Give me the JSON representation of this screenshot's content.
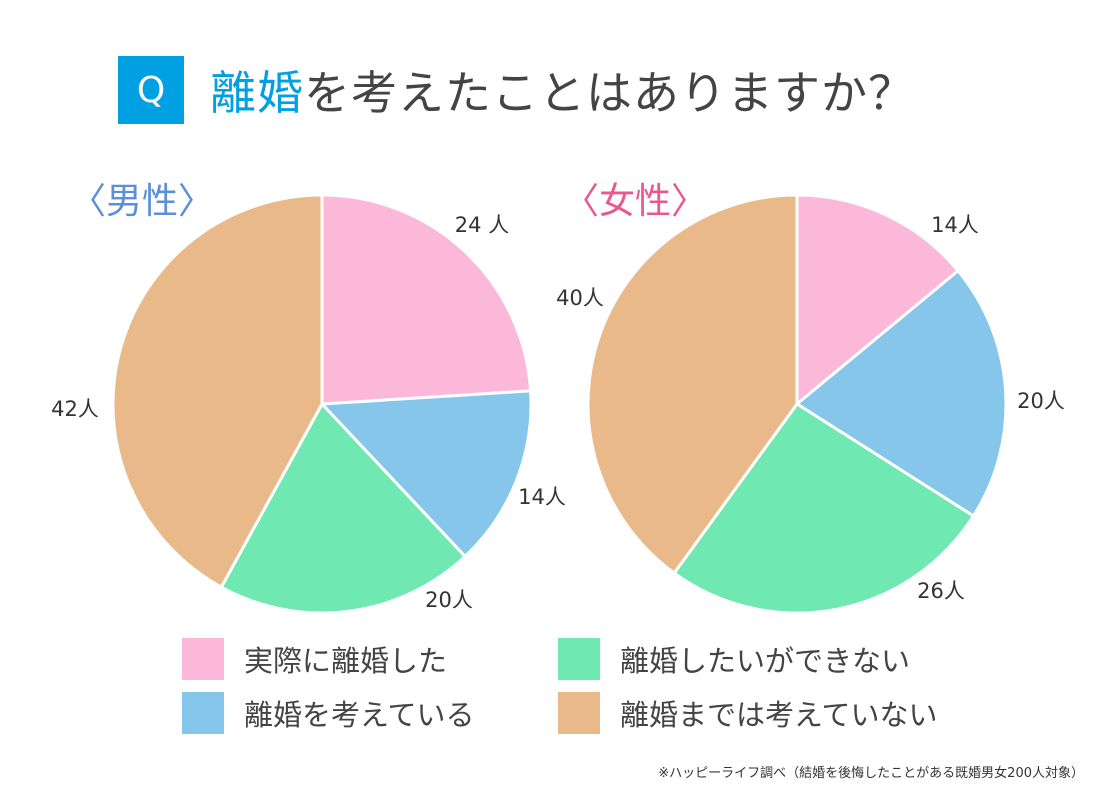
{
  "header": {
    "badge": "Q",
    "title_accent": "離婚",
    "title_rest": "を考えたことはありますか？"
  },
  "chart_data": [
    {
      "type": "pie",
      "title": "〈男性〉",
      "unit": "人",
      "categories": [
        "実際に離婚した",
        "離婚を考えている",
        "離婚したいができない",
        "離婚までは考えていない"
      ],
      "values": [
        24,
        14,
        20,
        42
      ],
      "value_labels": [
        "24 人",
        "14人",
        "20人",
        "42人"
      ],
      "colors": [
        "#fcb8d9",
        "#85c6ea",
        "#6fe8b1",
        "#e9b98a"
      ],
      "start": "12 o'clock, clockwise"
    },
    {
      "type": "pie",
      "title": "〈女性〉",
      "unit": "人",
      "categories": [
        "実際に離婚した",
        "離婚を考えている",
        "離婚したいができない",
        "離婚までは考えていない"
      ],
      "values": [
        14,
        20,
        26,
        40
      ],
      "value_labels": [
        "14人",
        "20人",
        "26人",
        "40人"
      ],
      "colors": [
        "#fcb8d9",
        "#85c6ea",
        "#6fe8b1",
        "#e9b98a"
      ],
      "start": "12 o'clock, clockwise"
    }
  ],
  "legend": [
    {
      "label": "実際に離婚した",
      "color": "#fcb8d9"
    },
    {
      "label": "離婚したいができない",
      "color": "#6fe8b1"
    },
    {
      "label": "離婚を考えている",
      "color": "#85c6ea"
    },
    {
      "label": "離婚までは考えていない",
      "color": "#e9b98a"
    }
  ],
  "footnote": "※ハッピーライフ調べ（結婚を後悔したことがある既婚男女200人対象）"
}
